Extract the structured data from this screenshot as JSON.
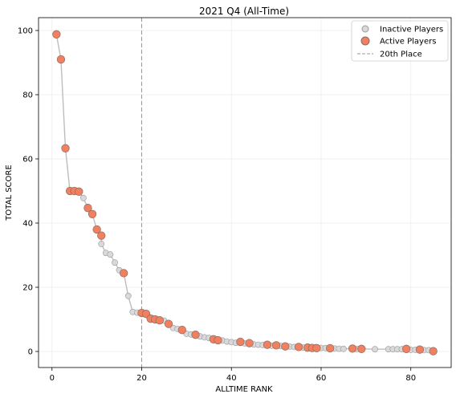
{
  "chart_data": {
    "type": "scatter",
    "title": "2021 Q4 (All-Time)",
    "xlabel": "ALLTIME RANK",
    "ylabel": "TOTAL SCORE",
    "xlim": [
      -3,
      89
    ],
    "ylim": [
      -5,
      104
    ],
    "xticks": [
      0,
      20,
      40,
      60,
      80
    ],
    "yticks": [
      0,
      20,
      40,
      60,
      80,
      100
    ],
    "grid": true,
    "legend_position": "top-right",
    "colors": {
      "inactive_fill": "#d9d9d9",
      "inactive_edge": "#9a9a9a",
      "active_fill": "#f08060",
      "active_edge": "#8c6a60",
      "line": "#bdbdbd",
      "vline": "#999999"
    },
    "reference_line": {
      "name": "20th Place",
      "x": 20
    },
    "series": [
      {
        "name": "Inactive Players",
        "points": [
          [
            7,
            47.8
          ],
          [
            11,
            33.5
          ],
          [
            12,
            30.7
          ],
          [
            13,
            30.2
          ],
          [
            14,
            27.7
          ],
          [
            15,
            25.3
          ],
          [
            17,
            17.3
          ],
          [
            18,
            12.3
          ],
          [
            19,
            12.1
          ],
          [
            23,
            10
          ],
          [
            25,
            9.6
          ],
          [
            27,
            7.3
          ],
          [
            28,
            7
          ],
          [
            30,
            5.5
          ],
          [
            31,
            5.3
          ],
          [
            33,
            4.7
          ],
          [
            34,
            4.4
          ],
          [
            35,
            4.2
          ],
          [
            38,
            3.4
          ],
          [
            39,
            3.1
          ],
          [
            40,
            2.9
          ],
          [
            41,
            2.7
          ],
          [
            43,
            2.5
          ],
          [
            45,
            2.2
          ],
          [
            46,
            2.1
          ],
          [
            47,
            2
          ],
          [
            49,
            1.8
          ],
          [
            51,
            1.7
          ],
          [
            53,
            1.5
          ],
          [
            54,
            1.4
          ],
          [
            56,
            1.2
          ],
          [
            60,
            1.1
          ],
          [
            61,
            1.05
          ],
          [
            63,
            0.9
          ],
          [
            64,
            0.85
          ],
          [
            65,
            0.8
          ],
          [
            68,
            0.75
          ],
          [
            72,
            0.7
          ],
          [
            75,
            0.7
          ],
          [
            76,
            0.7
          ],
          [
            77,
            0.7
          ],
          [
            78,
            0.7
          ],
          [
            80,
            0.5
          ],
          [
            81,
            0.5
          ],
          [
            83,
            0.4
          ],
          [
            84,
            0.4
          ]
        ]
      },
      {
        "name": "Active Players",
        "points": [
          [
            1,
            98.8
          ],
          [
            2,
            91
          ],
          [
            3,
            63.3
          ],
          [
            4,
            50
          ],
          [
            5,
            50
          ],
          [
            6,
            49.8
          ],
          [
            8,
            44.7
          ],
          [
            9,
            42.8
          ],
          [
            10,
            38
          ],
          [
            11,
            36.1
          ],
          [
            16,
            24.4
          ],
          [
            20,
            12
          ],
          [
            21,
            11.7
          ],
          [
            22,
            10.2
          ],
          [
            23,
            10
          ],
          [
            24,
            9.7
          ],
          [
            26,
            8.6
          ],
          [
            29,
            6.7
          ],
          [
            32,
            5.2
          ],
          [
            36,
            3.8
          ],
          [
            37,
            3.5
          ],
          [
            42,
            3
          ],
          [
            44,
            2.6
          ],
          [
            48,
            2.1
          ],
          [
            50,
            1.9
          ],
          [
            52,
            1.6
          ],
          [
            55,
            1.4
          ],
          [
            57,
            1.2
          ],
          [
            58,
            1.1
          ],
          [
            59,
            1.05
          ],
          [
            62,
            1
          ],
          [
            67,
            0.9
          ],
          [
            69,
            0.8
          ],
          [
            79,
            0.8
          ],
          [
            82,
            0.6
          ],
          [
            85,
            0.1
          ]
        ]
      }
    ]
  }
}
